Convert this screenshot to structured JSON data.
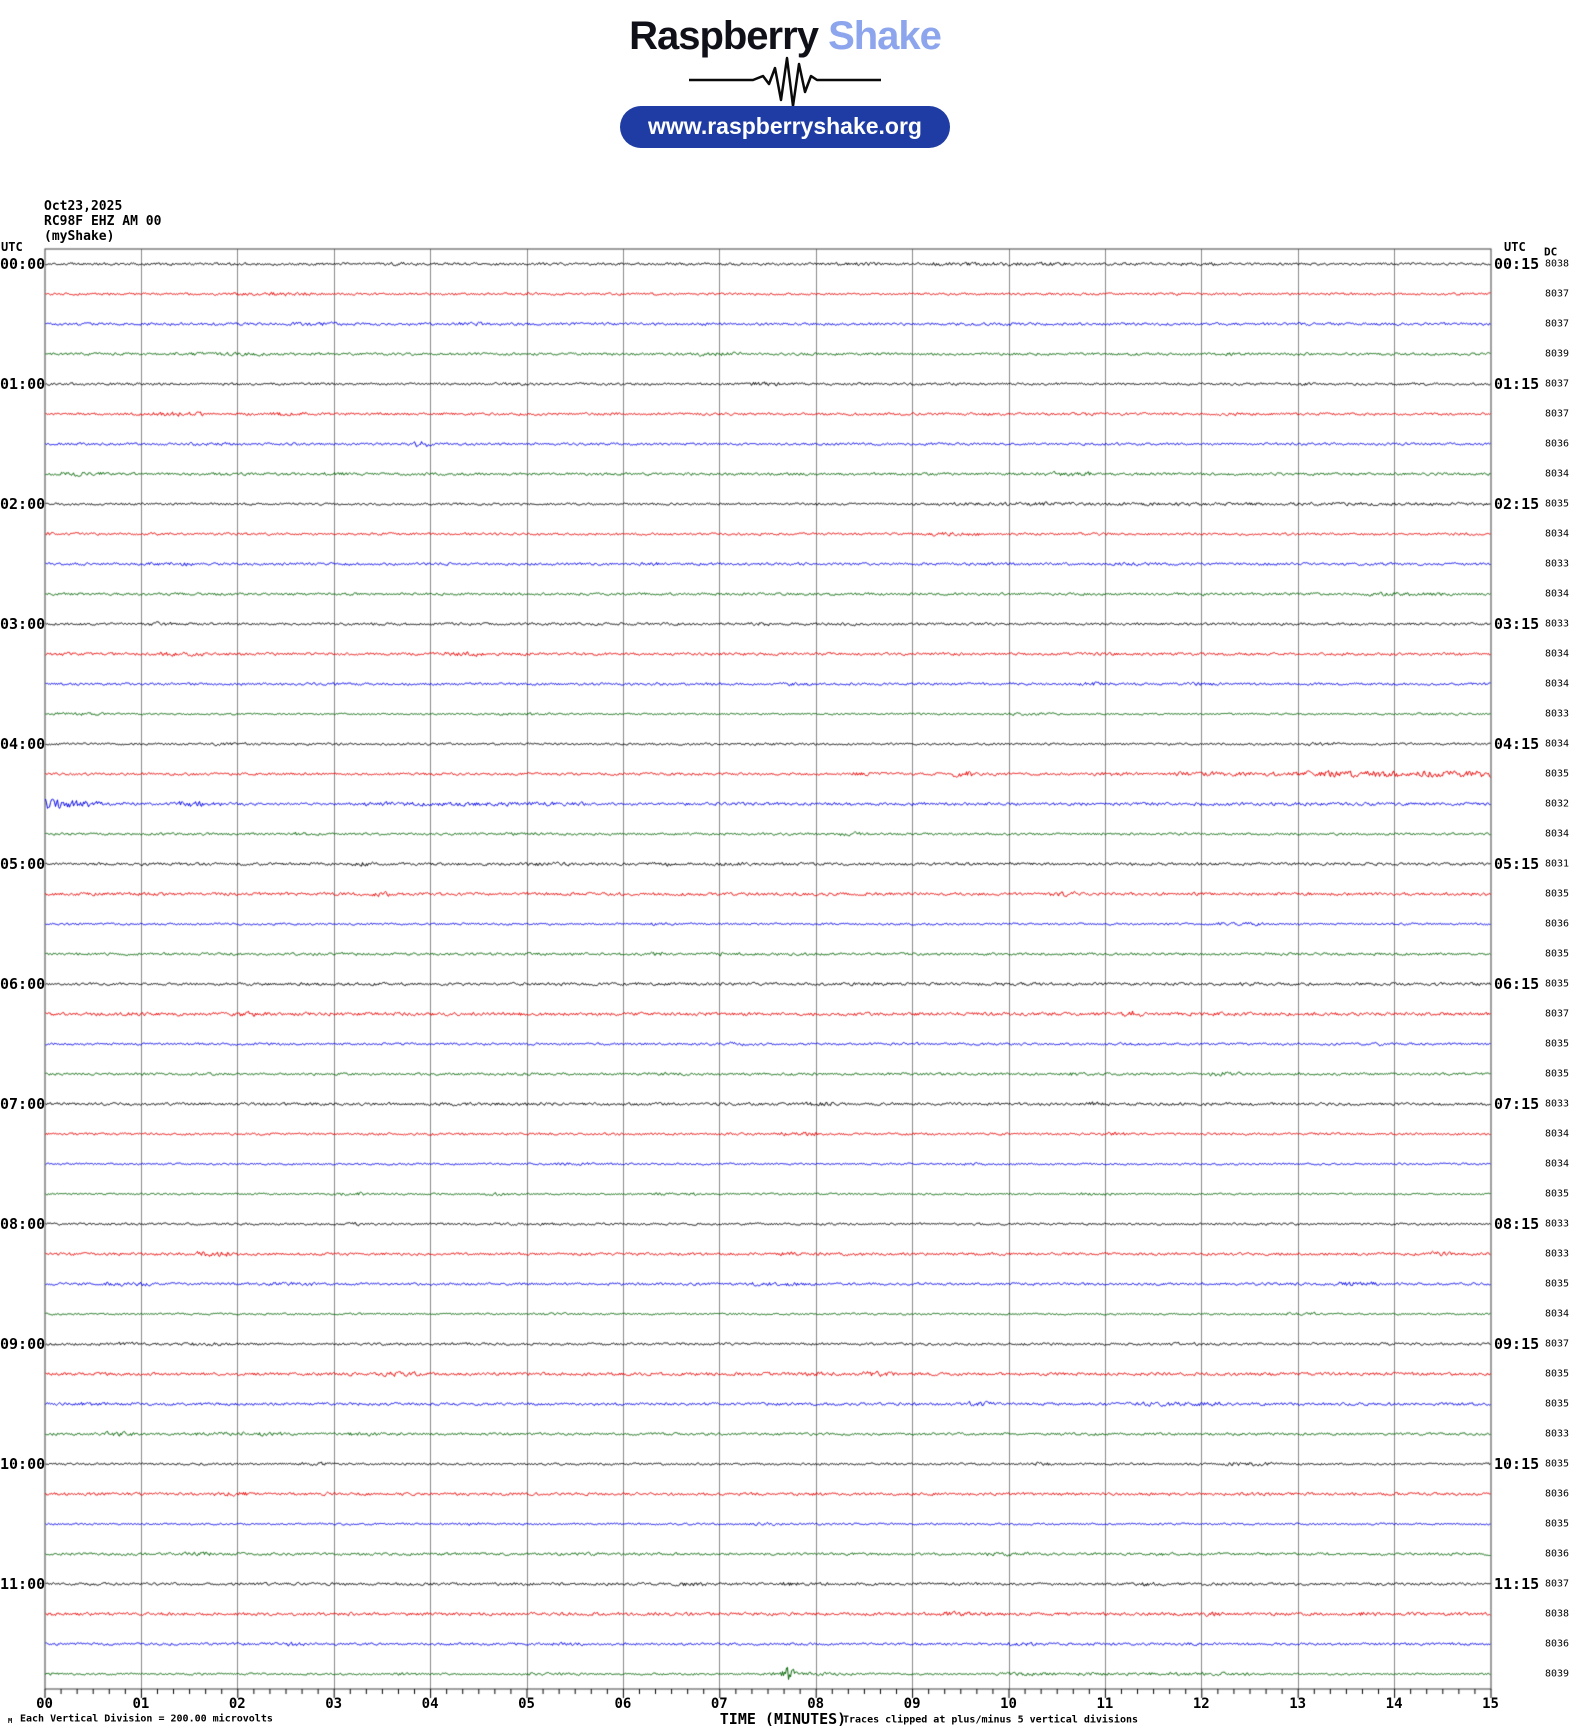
{
  "header": {
    "brand_primary": "Raspberry",
    "brand_secondary": "Shake",
    "url_pill": "www.raspberryshake.org"
  },
  "info": {
    "date": "Oct23,2025",
    "station": "RC98F EHZ AM 00",
    "network": "(myShake)"
  },
  "chart_data": {
    "type": "line",
    "title": "Raspberry Shake 12-hour helicorder, station RC98F EHZ AM 00 (myShake), Oct23,2025",
    "left_axis_header": "UTC",
    "right_axis_header": "UTC",
    "dc_header": "DC",
    "x_axis": {
      "label": "TIME (MINUTES)",
      "min": 0,
      "max": 15,
      "tick_labels": [
        "00",
        "01",
        "02",
        "03",
        "04",
        "05",
        "06",
        "07",
        "08",
        "09",
        "10",
        "11",
        "12",
        "13",
        "14",
        "15"
      ],
      "minor_ticks_per_minute": 6,
      "grid": "vertical lines every minute"
    },
    "row_span_minutes": 15,
    "clip_divisions": 5,
    "colors": {
      "black": "#000000",
      "red": "#e80000",
      "blue": "#0000e8",
      "green": "#006400",
      "grid": "#8a8a8a",
      "frame": "#3c3c3c"
    },
    "rows": [
      {
        "utc_left": "00:00",
        "utc_right": "00:15",
        "color": "black",
        "dc": 8038
      },
      {
        "utc_left": "",
        "utc_right": "",
        "color": "red",
        "dc": 8037
      },
      {
        "utc_left": "",
        "utc_right": "",
        "color": "blue",
        "dc": 8037
      },
      {
        "utc_left": "",
        "utc_right": "",
        "color": "green",
        "dc": 8039
      },
      {
        "utc_left": "01:00",
        "utc_right": "01:15",
        "color": "black",
        "dc": 8037
      },
      {
        "utc_left": "",
        "utc_right": "",
        "color": "red",
        "dc": 8037
      },
      {
        "utc_left": "",
        "utc_right": "",
        "color": "blue",
        "dc": 8036
      },
      {
        "utc_left": "",
        "utc_right": "",
        "color": "green",
        "dc": 8034
      },
      {
        "utc_left": "02:00",
        "utc_right": "02:15",
        "color": "black",
        "dc": 8035
      },
      {
        "utc_left": "",
        "utc_right": "",
        "color": "red",
        "dc": 8034
      },
      {
        "utc_left": "",
        "utc_right": "",
        "color": "blue",
        "dc": 8033
      },
      {
        "utc_left": "",
        "utc_right": "",
        "color": "green",
        "dc": 8034
      },
      {
        "utc_left": "03:00",
        "utc_right": "03:15",
        "color": "black",
        "dc": 8033
      },
      {
        "utc_left": "",
        "utc_right": "",
        "color": "red",
        "dc": 8034
      },
      {
        "utc_left": "",
        "utc_right": "",
        "color": "blue",
        "dc": 8034
      },
      {
        "utc_left": "",
        "utc_right": "",
        "color": "green",
        "dc": 8033
      },
      {
        "utc_left": "04:00",
        "utc_right": "04:15",
        "color": "black",
        "dc": 8034
      },
      {
        "utc_left": "",
        "utc_right": "",
        "color": "red",
        "dc": 8035
      },
      {
        "utc_left": "",
        "utc_right": "",
        "color": "blue",
        "dc": 8032
      },
      {
        "utc_left": "",
        "utc_right": "",
        "color": "green",
        "dc": 8034
      },
      {
        "utc_left": "05:00",
        "utc_right": "05:15",
        "color": "black",
        "dc": 8031
      },
      {
        "utc_left": "",
        "utc_right": "",
        "color": "red",
        "dc": 8035
      },
      {
        "utc_left": "",
        "utc_right": "",
        "color": "blue",
        "dc": 8036
      },
      {
        "utc_left": "",
        "utc_right": "",
        "color": "green",
        "dc": 8035
      },
      {
        "utc_left": "06:00",
        "utc_right": "06:15",
        "color": "black",
        "dc": 8035
      },
      {
        "utc_left": "",
        "utc_right": "",
        "color": "red",
        "dc": 8037
      },
      {
        "utc_left": "",
        "utc_right": "",
        "color": "blue",
        "dc": 8035
      },
      {
        "utc_left": "",
        "utc_right": "",
        "color": "green",
        "dc": 8035
      },
      {
        "utc_left": "07:00",
        "utc_right": "07:15",
        "color": "black",
        "dc": 8033
      },
      {
        "utc_left": "",
        "utc_right": "",
        "color": "red",
        "dc": 8034
      },
      {
        "utc_left": "",
        "utc_right": "",
        "color": "blue",
        "dc": 8034
      },
      {
        "utc_left": "",
        "utc_right": "",
        "color": "green",
        "dc": 8035
      },
      {
        "utc_left": "08:00",
        "utc_right": "08:15",
        "color": "black",
        "dc": 8033
      },
      {
        "utc_left": "",
        "utc_right": "",
        "color": "red",
        "dc": 8033
      },
      {
        "utc_left": "",
        "utc_right": "",
        "color": "blue",
        "dc": 8035
      },
      {
        "utc_left": "",
        "utc_right": "",
        "color": "green",
        "dc": 8034
      },
      {
        "utc_left": "09:00",
        "utc_right": "09:15",
        "color": "black",
        "dc": 8037
      },
      {
        "utc_left": "",
        "utc_right": "",
        "color": "red",
        "dc": 8035
      },
      {
        "utc_left": "",
        "utc_right": "",
        "color": "blue",
        "dc": 8035
      },
      {
        "utc_left": "",
        "utc_right": "",
        "color": "green",
        "dc": 8033
      },
      {
        "utc_left": "10:00",
        "utc_right": "10:15",
        "color": "black",
        "dc": 8035
      },
      {
        "utc_left": "",
        "utc_right": "",
        "color": "red",
        "dc": 8036
      },
      {
        "utc_left": "",
        "utc_right": "",
        "color": "blue",
        "dc": 8035
      },
      {
        "utc_left": "",
        "utc_right": "",
        "color": "green",
        "dc": 8036
      },
      {
        "utc_left": "11:00",
        "utc_right": "11:15",
        "color": "black",
        "dc": 8037
      },
      {
        "utc_left": "",
        "utc_right": "",
        "color": "red",
        "dc": 8038
      },
      {
        "utc_left": "",
        "utc_right": "",
        "color": "blue",
        "dc": 8036
      },
      {
        "utc_left": "",
        "utc_right": "",
        "color": "green",
        "dc": 8039
      }
    ],
    "events": [
      {
        "row": 0,
        "kind": "sustain",
        "start": 9.0,
        "end": 10.6,
        "amp": 1.7
      },
      {
        "row": 1,
        "kind": "burst",
        "start": 1.8,
        "end": 3.6,
        "amp": 1.6
      },
      {
        "row": 2,
        "kind": "burst",
        "start": 2.5,
        "end": 3.2,
        "amp": 1.7
      },
      {
        "row": 3,
        "kind": "sustain",
        "start": 1.1,
        "end": 2.3,
        "amp": 1.6
      },
      {
        "row": 7,
        "kind": "burst",
        "start": 3.9,
        "end": 4.4,
        "amp": 1.8
      },
      {
        "row": 8,
        "kind": "sustain",
        "start": 8.5,
        "end": 15.0,
        "amp": 1.5
      },
      {
        "row": 9,
        "kind": "burst",
        "start": 0.0,
        "end": 0.3,
        "amp": 2.3
      },
      {
        "row": 17,
        "kind": "sustain",
        "start": 11.3,
        "end": 15.0,
        "amp": 2.0
      },
      {
        "row": 17,
        "kind": "sustain",
        "start": 12.8,
        "end": 15.0,
        "amp": 3.2
      },
      {
        "row": 18,
        "kind": "burst",
        "start": -0.3,
        "end": 1.4,
        "amp": 6.8
      },
      {
        "row": 18,
        "kind": "burst",
        "start": 1.2,
        "end": 3.3,
        "amp": 3.2
      },
      {
        "row": 18,
        "kind": "sustain",
        "start": 3.0,
        "end": 5.6,
        "amp": 1.9
      },
      {
        "row": 18,
        "kind": "sustain",
        "start": 5.6,
        "end": 15.0,
        "amp": 1.4
      },
      {
        "row": 19,
        "kind": "burst",
        "start": 2.55,
        "end": 3.1,
        "amp": 2.4
      },
      {
        "row": 24,
        "kind": "sustain",
        "start": 0.0,
        "end": 15.0,
        "amp": 1.35
      },
      {
        "row": 25,
        "kind": "burst",
        "start": 4.9,
        "end": 5.2,
        "amp": 2.6
      },
      {
        "row": 27,
        "kind": "burst",
        "start": 10.6,
        "end": 11.15,
        "amp": 2.2
      },
      {
        "row": 28,
        "kind": "sustain",
        "start": 4.0,
        "end": 5.2,
        "amp": 1.6
      },
      {
        "row": 31,
        "kind": "burst",
        "start": 3.2,
        "end": 3.7,
        "amp": 2.0
      },
      {
        "row": 38,
        "kind": "sustain",
        "start": 11.1,
        "end": 12.2,
        "amp": 1.9
      },
      {
        "row": 47,
        "kind": "spike",
        "start": 7.6,
        "end": 7.82,
        "amp": 9.5
      },
      {
        "row": 47,
        "kind": "burst",
        "start": 7.7,
        "end": 9.6,
        "amp": 2.1
      },
      {
        "row": 47,
        "kind": "sustain",
        "start": 9.6,
        "end": 12.5,
        "amp": 1.5
      }
    ],
    "footer": {
      "scale_glyph": "M",
      "scale_note": "Each Vertical Division =  200.00 microvolts",
      "clip_note": "Traces clipped at plus/minus 5 vertical divisions"
    }
  }
}
